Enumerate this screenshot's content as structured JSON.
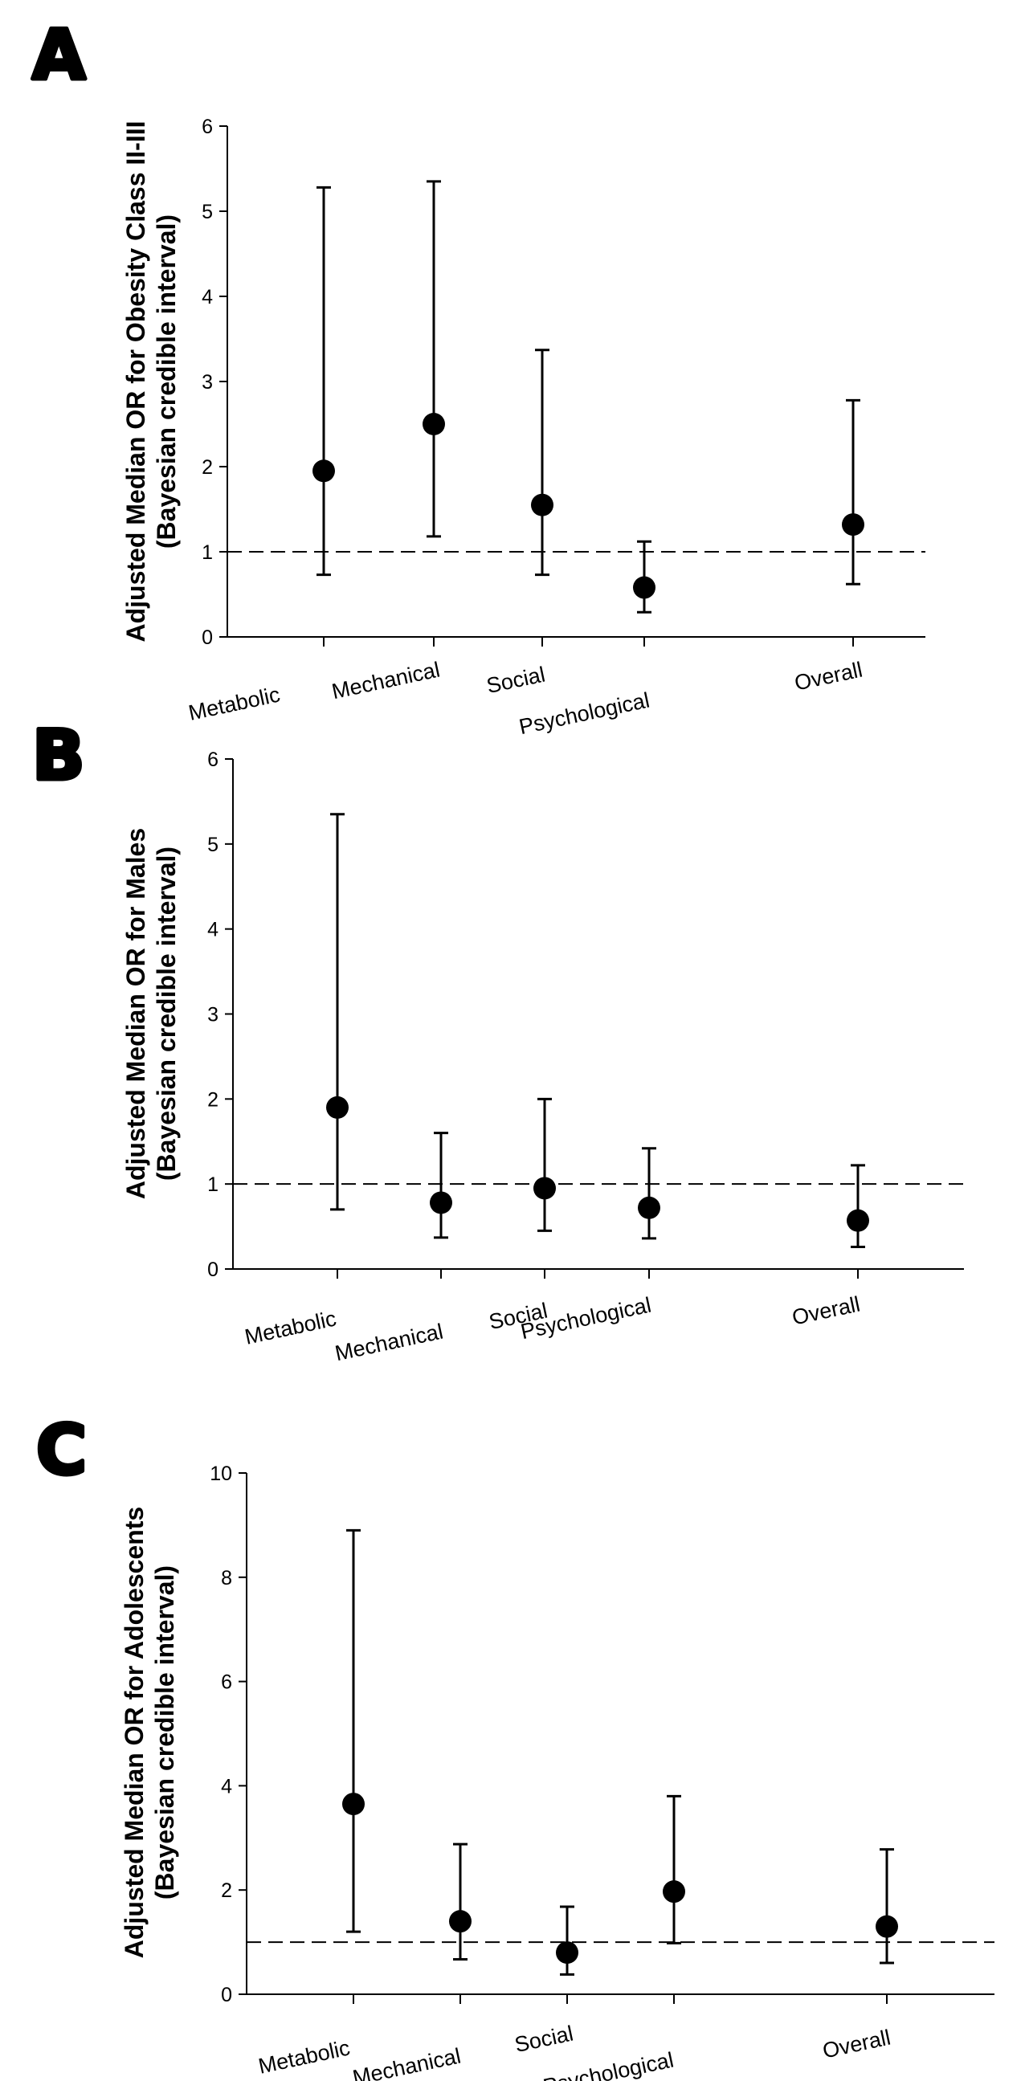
{
  "chart_data": [
    {
      "type": "scatter",
      "panel": "A",
      "title": "",
      "xlabel": "",
      "ylabel": [
        "Adjusted Median OR for Obesity Class II-III",
        "(Bayesian credible interval)"
      ],
      "ylim": [
        0,
        6
      ],
      "yticks": [
        0,
        1,
        2,
        3,
        4,
        5,
        6
      ],
      "reference_line": 1,
      "categories": [
        "Metabolic",
        "Mechanical",
        "Social",
        "Psychological",
        "Overall"
      ],
      "points": [
        {
          "category": "Metabolic",
          "median": 1.95,
          "lower": 0.73,
          "upper": 5.28
        },
        {
          "category": "Mechanical",
          "median": 2.5,
          "lower": 1.18,
          "upper": 5.35
        },
        {
          "category": "Social",
          "median": 1.55,
          "lower": 0.73,
          "upper": 3.37
        },
        {
          "category": "Psychological",
          "median": 0.58,
          "lower": 0.29,
          "upper": 1.12
        },
        {
          "category": "Overall",
          "median": 1.32,
          "lower": 0.62,
          "upper": 2.78
        }
      ]
    },
    {
      "type": "scatter",
      "panel": "B",
      "title": "",
      "xlabel": "",
      "ylabel": [
        "Adjusted Median OR for Males",
        "(Bayesian credible interval)"
      ],
      "ylim": [
        0,
        6
      ],
      "yticks": [
        0,
        1,
        2,
        3,
        4,
        5,
        6
      ],
      "reference_line": 1,
      "categories": [
        "Metabolic",
        "Mechanical",
        "Social",
        "Psychological",
        "Overall"
      ],
      "points": [
        {
          "category": "Metabolic",
          "median": 1.9,
          "lower": 0.7,
          "upper": 5.35
        },
        {
          "category": "Mechanical",
          "median": 0.78,
          "lower": 0.37,
          "upper": 1.6
        },
        {
          "category": "Social",
          "median": 0.95,
          "lower": 0.45,
          "upper": 2.0
        },
        {
          "category": "Psychological",
          "median": 0.72,
          "lower": 0.36,
          "upper": 1.42
        },
        {
          "category": "Overall",
          "median": 0.57,
          "lower": 0.26,
          "upper": 1.22
        }
      ]
    },
    {
      "type": "scatter",
      "panel": "C",
      "title": "",
      "xlabel": "",
      "ylabel": [
        "Adjusted Median OR for Adolescents",
        "(Bayesian credible interval)"
      ],
      "ylim": [
        0,
        10
      ],
      "yticks": [
        0,
        2,
        4,
        6,
        8,
        10
      ],
      "reference_line": 1,
      "categories": [
        "Metabolic",
        "Mechanical",
        "Social",
        "Psychological",
        "Overall"
      ],
      "points": [
        {
          "category": "Metabolic",
          "median": 3.65,
          "lower": 1.2,
          "upper": 8.9
        },
        {
          "category": "Mechanical",
          "median": 1.4,
          "lower": 0.67,
          "upper": 2.88
        },
        {
          "category": "Social",
          "median": 0.8,
          "lower": 0.38,
          "upper": 1.68
        },
        {
          "category": "Psychological",
          "median": 1.97,
          "lower": 0.98,
          "upper": 3.8
        },
        {
          "category": "Overall",
          "median": 1.3,
          "lower": 0.6,
          "upper": 2.78
        }
      ]
    }
  ]
}
